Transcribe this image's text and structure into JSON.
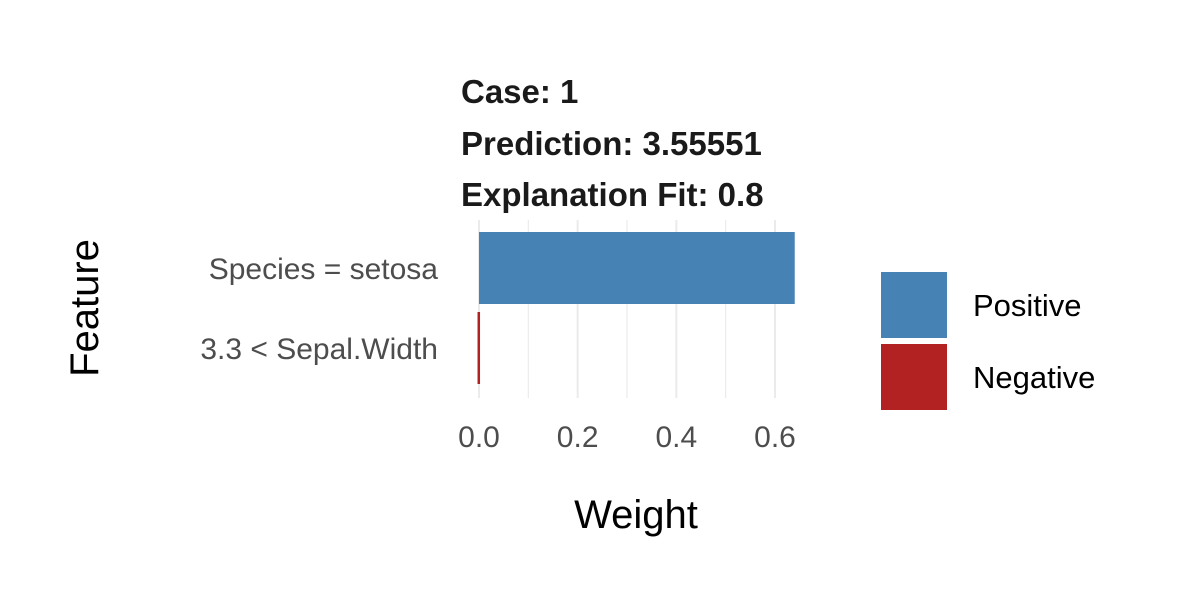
{
  "chart_data": {
    "type": "bar",
    "orientation": "horizontal",
    "title_lines": [
      "Case: 1",
      "Prediction: 3.55551",
      "Explanation Fit: 0.8"
    ],
    "categories": [
      "Species = setosa",
      "3.3 < Sepal.Width"
    ],
    "values": [
      0.64,
      -0.003
    ],
    "bar_sign": [
      "Positive",
      "Negative"
    ],
    "xlabel": "Weight",
    "ylabel": "Feature",
    "xlim": [
      0.0,
      0.65
    ],
    "x_ticks": [
      0.0,
      0.2,
      0.4,
      0.6
    ],
    "x_tick_labels": [
      "0.0",
      "0.2",
      "0.4",
      "0.6"
    ],
    "grid": true,
    "legend": {
      "placement": "right",
      "entries": [
        {
          "label": "Positive",
          "color": "#4682b4"
        },
        {
          "label": "Negative",
          "color": "#b22222"
        }
      ]
    },
    "colors": {
      "Positive": "#4682b4",
      "Negative": "#b22222"
    }
  }
}
